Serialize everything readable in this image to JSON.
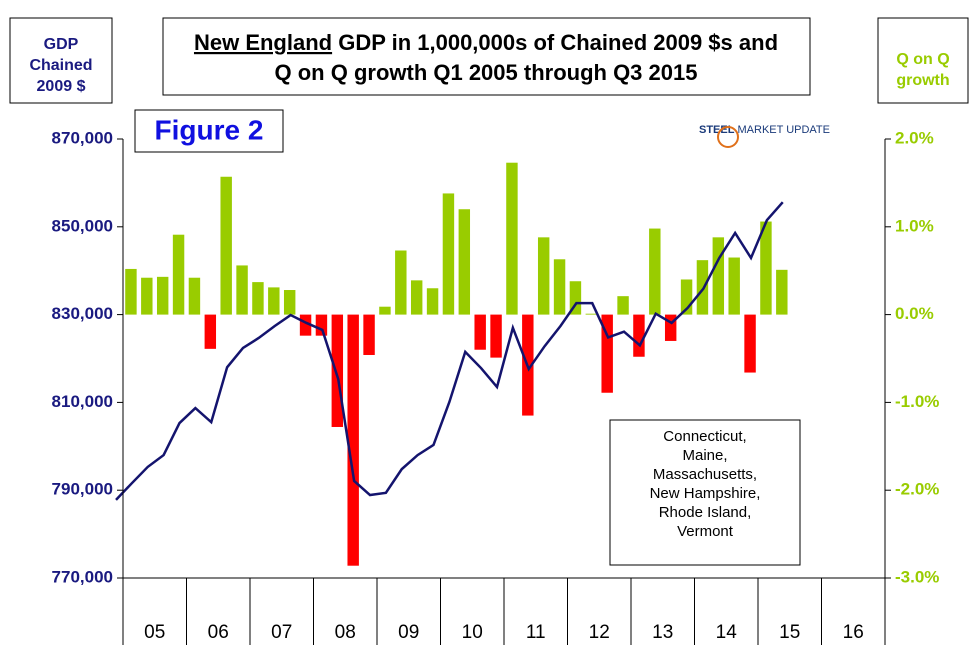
{
  "chart_data": {
    "type": "bar_line",
    "title_emphasis": "New England",
    "title_line1_rest": " GDP in 1,000,000s of Chained 2009 $s and",
    "title_line2": "Q on Q growth Q1 2005 through Q3 2015",
    "y_axis_label": [
      "GDP",
      "Chained",
      "2009 $"
    ],
    "y2_axis_label": [
      "Q on Q",
      "growth"
    ],
    "figure_label": "Figure 2",
    "logo": {
      "bold": "STEEL",
      "rest": " MARKET UPDATE"
    },
    "note": [
      "Connecticut,",
      "Maine,",
      "Massachusetts,",
      "New Hampshire,",
      "Rhode Island,",
      "Vermont"
    ],
    "x_labels": [
      "05",
      "06",
      "07",
      "08",
      "09",
      "10",
      "11",
      "12",
      "13",
      "14",
      "15",
      "16"
    ],
    "ylim": [
      770000,
      870000
    ],
    "yticks": [
      {
        "value": 770000,
        "label": "770,000"
      },
      {
        "value": 790000,
        "label": "790,000"
      },
      {
        "value": 810000,
        "label": "810,000"
      },
      {
        "value": 830000,
        "label": "830,000"
      },
      {
        "value": 850000,
        "label": "850,000"
      },
      {
        "value": 870000,
        "label": "870,000"
      }
    ],
    "y2lim": [
      -3,
      2
    ],
    "y2ticks": [
      {
        "value": -3,
        "label": "-3.0%"
      },
      {
        "value": -2,
        "label": "-2.0%"
      },
      {
        "value": -1,
        "label": "-1.0%"
      },
      {
        "value": 0,
        "label": "0.0%"
      },
      {
        "value": 1,
        "label": "1.0%"
      },
      {
        "value": 2,
        "label": "2.0%"
      }
    ],
    "series": [
      {
        "type": "bar",
        "axis": "y2",
        "positive_color": "#99cc00",
        "negative_color": "#ff0000",
        "values": [
          0.52,
          0.42,
          0.43,
          0.91,
          0.42,
          -0.39,
          1.57,
          0.56,
          0.37,
          0.31,
          0.28,
          -0.24,
          -0.24,
          -1.28,
          -2.86,
          -0.46,
          0.09,
          0.73,
          0.39,
          0.3,
          1.38,
          1.2,
          -0.4,
          -0.49,
          1.73,
          -1.15,
          0.88,
          0.63,
          0.38,
          0.01,
          -0.89,
          0.21,
          -0.48,
          0.98,
          -0.3,
          0.4,
          0.62,
          0.88,
          0.65,
          -0.66,
          1.06,
          0.51
        ]
      },
      {
        "type": "line",
        "axis": "y",
        "color": "#14146e",
        "values": [
          787800,
          791600,
          795300,
          798000,
          805300,
          808700,
          805500,
          818000,
          822400,
          824700,
          827400,
          829900,
          828100,
          826500,
          815300,
          792100,
          788900,
          789400,
          794800,
          798000,
          800300,
          810100,
          821500,
          817800,
          813500,
          827000,
          817600,
          822800,
          827400,
          832600,
          832600,
          824800,
          826100,
          823000,
          830200,
          828100,
          831500,
          835900,
          842900,
          848600,
          842900,
          851500,
          855600
        ]
      }
    ]
  }
}
